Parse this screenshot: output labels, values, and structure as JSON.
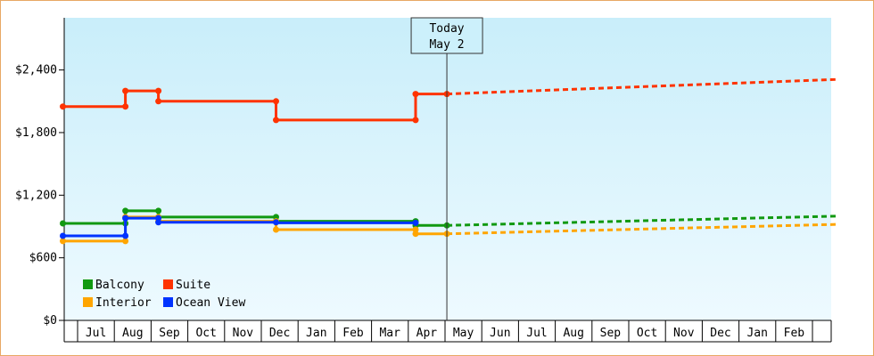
{
  "chart_data": {
    "type": "line",
    "title": "",
    "xlabel": "",
    "ylabel": "",
    "ylim": [
      0,
      2900
    ],
    "y_ticks": [
      0,
      600,
      1200,
      1800,
      2400
    ],
    "y_tick_labels": [
      "$0",
      "$600",
      "$1,200",
      "$1,800",
      "$2,400"
    ],
    "grid": false,
    "legend_position": "bottom-left",
    "months": [
      "Jul",
      "Aug",
      "Sep",
      "Oct",
      "Nov",
      "Dec",
      "Jan",
      "Feb",
      "Mar",
      "Apr",
      "May",
      "Jun",
      "Jul",
      "Aug",
      "Sep",
      "Oct",
      "Nov",
      "Dec",
      "Jan",
      "Feb"
    ],
    "today": {
      "line1": "Today",
      "line2": "May 2",
      "month_pos": 10.05
    },
    "series": [
      {
        "name": "Balcony",
        "color": "#119911",
        "legend_order": 0,
        "points": [
          [
            -0.4,
            930
          ],
          [
            1.3,
            930
          ],
          [
            1.3,
            1050
          ],
          [
            2.2,
            1050
          ],
          [
            2.2,
            990
          ],
          [
            5.4,
            990
          ],
          [
            5.4,
            950
          ],
          [
            9.2,
            950
          ],
          [
            9.2,
            910
          ],
          [
            10.05,
            910
          ]
        ],
        "markers": [
          [
            -0.4,
            930
          ],
          [
            1.3,
            930
          ],
          [
            1.3,
            1050
          ],
          [
            2.2,
            1050
          ],
          [
            2.2,
            990
          ],
          [
            5.4,
            990
          ],
          [
            5.4,
            950
          ],
          [
            9.2,
            950
          ],
          [
            9.2,
            910
          ],
          [
            10.05,
            910
          ]
        ],
        "forecast": [
          [
            10.05,
            910
          ],
          [
            20.7,
            1000
          ]
        ]
      },
      {
        "name": "Suite",
        "color": "#ff3300",
        "legend_order": 1,
        "points": [
          [
            -0.4,
            2050
          ],
          [
            1.3,
            2050
          ],
          [
            1.3,
            2200
          ],
          [
            2.2,
            2200
          ],
          [
            2.2,
            2100
          ],
          [
            5.4,
            2100
          ],
          [
            5.4,
            1920
          ],
          [
            9.2,
            1920
          ],
          [
            9.2,
            2170
          ],
          [
            10.05,
            2170
          ]
        ],
        "markers": [
          [
            -0.4,
            2050
          ],
          [
            1.3,
            2050
          ],
          [
            1.3,
            2200
          ],
          [
            2.2,
            2200
          ],
          [
            2.2,
            2100
          ],
          [
            5.4,
            2100
          ],
          [
            5.4,
            1920
          ],
          [
            9.2,
            1920
          ],
          [
            9.2,
            2170
          ],
          [
            10.05,
            2170
          ]
        ],
        "forecast": [
          [
            10.05,
            2170
          ],
          [
            20.7,
            2310
          ]
        ]
      },
      {
        "name": "Interior",
        "color": "#ffa500",
        "legend_order": 2,
        "points": [
          [
            -0.4,
            760
          ],
          [
            1.3,
            760
          ],
          [
            1.3,
            990
          ],
          [
            2.2,
            990
          ],
          [
            2.2,
            950
          ],
          [
            5.4,
            950
          ],
          [
            5.4,
            870
          ],
          [
            9.2,
            870
          ],
          [
            9.2,
            830
          ],
          [
            10.05,
            830
          ]
        ],
        "markers": [
          [
            -0.4,
            760
          ],
          [
            1.3,
            760
          ],
          [
            1.3,
            990
          ],
          [
            2.2,
            990
          ],
          [
            2.2,
            950
          ],
          [
            5.4,
            950
          ],
          [
            5.4,
            870
          ],
          [
            9.2,
            870
          ],
          [
            9.2,
            830
          ],
          [
            10.05,
            830
          ]
        ],
        "forecast": [
          [
            10.05,
            830
          ],
          [
            20.7,
            920
          ]
        ]
      },
      {
        "name": "Ocean View",
        "color": "#0033ff",
        "legend_order": 3,
        "points": [
          [
            -0.4,
            810
          ],
          [
            1.3,
            810
          ],
          [
            1.3,
            980
          ],
          [
            2.2,
            980
          ],
          [
            2.2,
            940
          ],
          [
            5.4,
            940
          ],
          [
            5.4,
            935
          ],
          [
            9.2,
            935
          ]
        ],
        "markers": [
          [
            -0.4,
            810
          ],
          [
            1.3,
            810
          ],
          [
            1.3,
            980
          ],
          [
            2.2,
            980
          ],
          [
            2.2,
            940
          ],
          [
            5.4,
            940
          ],
          [
            9.2,
            935
          ]
        ],
        "forecast": []
      }
    ]
  }
}
